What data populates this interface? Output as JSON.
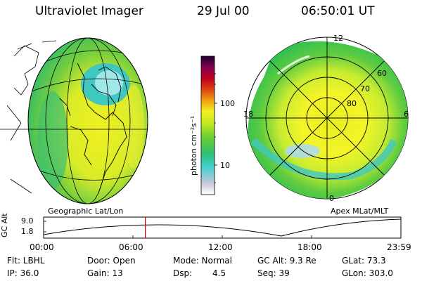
{
  "header": {
    "title": "Ultraviolet Imager",
    "date": "29 Jul 00",
    "time": "06:50:01 UT"
  },
  "left_panel": {
    "caption": "Geographic Lat/Lon"
  },
  "right_panel": {
    "caption": "Apex MLat/MLT",
    "mlt_labels": [
      "12",
      "18",
      "6",
      "0"
    ],
    "lat_labels": [
      "60",
      "70",
      "80"
    ]
  },
  "colorbar": {
    "unit_label": "photon cm⁻²s⁻¹",
    "ticks": [
      "100",
      "10"
    ],
    "scale": "log"
  },
  "timeline": {
    "y_label": "GC Alt",
    "y_ticks": [
      "9.0",
      "1.8"
    ],
    "x_ticks": [
      "00:00",
      "06:00",
      "12:00",
      "18:00",
      "23:59"
    ],
    "marker_time_hours": 6.83,
    "marker_color": "#cc0000"
  },
  "footer": {
    "col1": [
      "Flt: LBHL",
      "IP: 36.0"
    ],
    "col2": [
      "Door: Open",
      "Gain: 13"
    ],
    "col3": [
      "Mode: Normal",
      "Dsp:"
    ],
    "dsp_value": "4.5",
    "col4": [
      "GC Alt: 9.3 Re",
      "Seq: 39"
    ],
    "col5": [
      "GLat: 73.3",
      "GLon: 303.0"
    ]
  }
}
